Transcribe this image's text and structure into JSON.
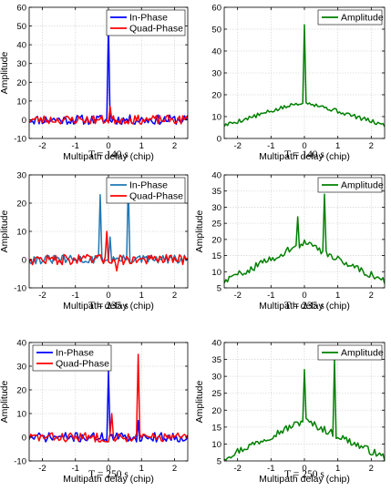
{
  "colors": {
    "blue": "#0000ff",
    "red": "#ff0000",
    "green": "#008000",
    "teal": "#1f77b4"
  },
  "chart_data": [
    {
      "type": "line",
      "xlabel": "Multipath delay (chip)",
      "ylabel": "Amplitude",
      "caption": "T = 140 s",
      "xlim": [
        -2.4,
        2.4
      ],
      "ylim": [
        -10,
        60
      ],
      "xticks": [
        -2,
        -1,
        0,
        1,
        2
      ],
      "yticks": [
        -10,
        0,
        10,
        20,
        30,
        40,
        50,
        60
      ],
      "xticklabels": [
        "-2",
        "-1",
        "0",
        "1",
        "2"
      ],
      "yticklabels": [
        "-10",
        "0",
        "10",
        "20",
        "30",
        "40",
        "50",
        "60"
      ],
      "grid": true,
      "legend": "top-right",
      "series": [
        {
          "name": "In-Phase",
          "color": "blue",
          "shape": "iq_inphase",
          "peaks": [
            [
              0,
              51
            ]
          ],
          "noise": 2.6,
          "seed": 11
        },
        {
          "name": "Quad-Phase",
          "color": "red",
          "shape": "iq_quad",
          "peaks": [
            [
              0.05,
              7
            ]
          ],
          "noise": 2.4,
          "seed": 23
        }
      ]
    },
    {
      "type": "line",
      "xlabel": "Multipath delay (chip)",
      "ylabel": "",
      "caption": "T = 140 s",
      "xlim": [
        -2.4,
        2.4
      ],
      "ylim": [
        0,
        60
      ],
      "xticks": [
        -2,
        -1,
        0,
        1,
        2
      ],
      "yticks": [
        0,
        10,
        20,
        30,
        40,
        50,
        60
      ],
      "xticklabels": [
        "-2",
        "-1",
        "0",
        "1",
        "2"
      ],
      "yticklabels": [
        "0",
        "10",
        "20",
        "30",
        "40",
        "50",
        "60"
      ],
      "grid": true,
      "legend": "top-right",
      "series": [
        {
          "name": "Amplitude",
          "color": "green",
          "shape": "amp",
          "base": 6,
          "top": 17,
          "peaks": [
            [
              0,
              52
            ]
          ],
          "noise": 1.0,
          "seed": 5
        }
      ]
    },
    {
      "type": "line",
      "xlabel": "Multipath delay (chip)",
      "ylabel": "Amplitude",
      "caption": "T = 235 s",
      "xlim": [
        -2.4,
        2.4
      ],
      "ylim": [
        -10,
        30
      ],
      "xticks": [
        -2,
        -1,
        0,
        1,
        2
      ],
      "yticks": [
        -10,
        0,
        10,
        20,
        30
      ],
      "xticklabels": [
        "-2",
        "-1",
        "0",
        "1",
        "2"
      ],
      "yticklabels": [
        "-10",
        "0",
        "10",
        "20",
        "30"
      ],
      "grid": true,
      "legend": "top-right",
      "series": [
        {
          "name": "In-Phase",
          "color": "teal",
          "shape": "iq_inphase",
          "peaks": [
            [
              -0.25,
              23
            ],
            [
              0.6,
              28
            ],
            [
              0.05,
              8
            ]
          ],
          "noise": 1.6,
          "seed": 31
        },
        {
          "name": "Quad-Phase",
          "color": "red",
          "shape": "iq_quad",
          "peaks": [
            [
              -0.05,
              10
            ],
            [
              0.25,
              -4
            ]
          ],
          "noise": 1.8,
          "seed": 47
        }
      ]
    },
    {
      "type": "line",
      "xlabel": "Multipath delay (chip)",
      "ylabel": "Amplitude",
      "caption": "T = 235 s",
      "xlim": [
        -2.4,
        2.4
      ],
      "ylim": [
        5,
        40
      ],
      "xticks": [
        -2,
        -1,
        0,
        1,
        2
      ],
      "yticks": [
        5,
        10,
        15,
        20,
        25,
        30,
        35,
        40
      ],
      "xticklabels": [
        "-2",
        "-1",
        "0",
        "1",
        "2"
      ],
      "yticklabels": [
        "5",
        "10",
        "15",
        "20",
        "25",
        "30",
        "35",
        "40"
      ],
      "grid": true,
      "legend": "top-right",
      "series": [
        {
          "name": "Amplitude",
          "color": "green",
          "shape": "amp",
          "base": 7,
          "top": 19,
          "peaks": [
            [
              -0.2,
              27
            ],
            [
              0.6,
              34
            ]
          ],
          "noise": 1.1,
          "seed": 59
        }
      ]
    },
    {
      "type": "line",
      "xlabel": "Multipath delay (chip)",
      "ylabel": "Amplitude",
      "caption": "T = 250 s",
      "xlim": [
        -2.4,
        2.4
      ],
      "ylim": [
        -10,
        40
      ],
      "xticks": [
        -2,
        -1,
        0,
        1,
        2
      ],
      "yticks": [
        -10,
        0,
        10,
        20,
        30,
        40
      ],
      "xticklabels": [
        "-2",
        "-1",
        "0",
        "1",
        "2"
      ],
      "yticklabels": [
        "-10",
        "0",
        "10",
        "20",
        "30",
        "40"
      ],
      "grid": true,
      "legend": "top-left",
      "series": [
        {
          "name": "In-Phase",
          "color": "blue",
          "shape": "iq_inphase",
          "peaks": [
            [
              0,
              28
            ],
            [
              0.9,
              7
            ]
          ],
          "noise": 2.0,
          "seed": 71
        },
        {
          "name": "Quad-Phase",
          "color": "red",
          "shape": "iq_quad",
          "peaks": [
            [
              0.9,
              35
            ],
            [
              0.1,
              10
            ]
          ],
          "noise": 2.0,
          "seed": 83
        }
      ]
    },
    {
      "type": "line",
      "xlabel": "Multipath delay (chip)",
      "ylabel": "Amplitude",
      "caption": "T = 250 s",
      "xlim": [
        -2.4,
        2.4
      ],
      "ylim": [
        5,
        40
      ],
      "xticks": [
        -2,
        -1,
        0,
        1,
        2
      ],
      "yticks": [
        5,
        10,
        15,
        20,
        25,
        30,
        35,
        40
      ],
      "xticklabels": [
        "-2",
        "-1",
        "0",
        "1",
        "2"
      ],
      "yticklabels": [
        "5",
        "10",
        "15",
        "20",
        "25",
        "30",
        "35",
        "40"
      ],
      "grid": true,
      "legend": "top-right",
      "series": [
        {
          "name": "Amplitude",
          "color": "green",
          "shape": "amp",
          "base": 6,
          "top": 17,
          "peaks": [
            [
              0,
              32
            ],
            [
              0.9,
              35
            ]
          ],
          "noise": 1.1,
          "seed": 97
        }
      ]
    }
  ]
}
